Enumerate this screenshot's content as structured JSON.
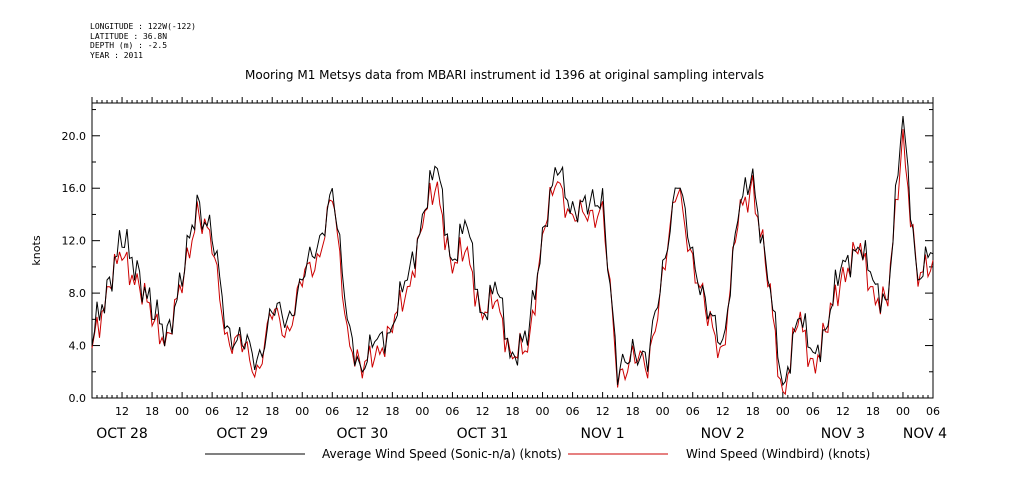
{
  "meta": {
    "longitude": "LONGITUDE : 122W(-122)",
    "latitude": "LATITUDE : 36.8N",
    "depth": "DEPTH (m) : -2.5",
    "year": "YEAR : 2011"
  },
  "chart_data": {
    "type": "line",
    "title": "Mooring M1 Metsys data from MBARI instrument id 1396 at original sampling intervals",
    "ylabel": "knots",
    "xlabel": "",
    "ylim": [
      0,
      22.5
    ],
    "xlim_hours_label": "Oct 28 06:00 to Nov 4 06:00",
    "yticks": [
      "0.0",
      "4.0",
      "8.0",
      "12.0",
      "16.0",
      "20.0"
    ],
    "xticks_hour_labels": [
      "12",
      "18",
      "00",
      "06",
      "12",
      "18",
      "00",
      "06",
      "12",
      "18",
      "00",
      "06",
      "12",
      "18",
      "00",
      "06",
      "12",
      "18",
      "00",
      "06",
      "12",
      "18",
      "00",
      "06",
      "12",
      "18",
      "00",
      "06",
      "12",
      "18",
      "00",
      "06"
    ],
    "day_labels": [
      "OCT 28",
      "OCT 29",
      "OCT 30",
      "OCT 31",
      "NOV  1",
      "NOV  2",
      "NOV  3",
      "NOV  4"
    ],
    "grid": false,
    "legend_position": "bottom",
    "series": [
      {
        "name": "Average Wind Speed (Sonic-n/a) (knots)",
        "color": "#000000",
        "x_hours_from_oct28_0600": [
          0,
          3,
          6,
          9,
          12,
          15,
          18,
          21,
          24,
          27,
          30,
          33,
          36,
          39,
          42,
          45,
          48,
          51,
          54,
          57,
          60,
          63,
          66,
          69,
          72,
          75,
          78,
          81,
          84,
          87,
          90,
          93,
          96,
          99,
          102,
          105,
          108,
          111,
          114,
          117,
          120,
          123,
          126,
          129,
          132,
          135,
          138,
          141,
          144,
          147,
          150,
          153,
          156,
          159,
          162,
          165,
          168
        ],
        "values": [
          4.0,
          9.0,
          11.5,
          10.5,
          6.0,
          5.5,
          8.5,
          15.5,
          12.0,
          5.5,
          4.0,
          3.0,
          6.5,
          6.0,
          9.0,
          11.5,
          16.0,
          6.0,
          2.0,
          4.5,
          5.5,
          9.0,
          14.0,
          17.5,
          10.5,
          13.0,
          6.5,
          8.0,
          3.5,
          4.0,
          13.0,
          17.0,
          15.0,
          14.0,
          16.0,
          1.0,
          4.5,
          2.0,
          10.5,
          16.0,
          11.5,
          6.0,
          4.5,
          13.5,
          17.5,
          9.0,
          1.0,
          6.0,
          3.5,
          5.5,
          10.5,
          11.5,
          9.0,
          7.5,
          21.5,
          9.0,
          11.0
        ]
      },
      {
        "name": "Wind Speed (Windbird) (knots)",
        "color": "#cc0000",
        "x_hours_from_oct28_0600": [
          0,
          3,
          6,
          9,
          12,
          15,
          18,
          21,
          24,
          27,
          30,
          33,
          36,
          39,
          42,
          45,
          48,
          51,
          54,
          57,
          60,
          63,
          66,
          69,
          72,
          75,
          78,
          81,
          84,
          87,
          90,
          93,
          96,
          99,
          102,
          105,
          108,
          111,
          114,
          117,
          120,
          123,
          126,
          129,
          132,
          135,
          138,
          141,
          144,
          147,
          150,
          153,
          156,
          159,
          162,
          165,
          168
        ],
        "values": [
          3.8,
          8.5,
          10.5,
          9.5,
          5.5,
          5.0,
          8.0,
          15.0,
          11.0,
          5.0,
          3.5,
          2.5,
          6.0,
          5.5,
          8.5,
          11.0,
          15.0,
          5.5,
          1.5,
          4.0,
          5.0,
          8.5,
          13.0,
          16.5,
          9.5,
          11.5,
          6.0,
          7.5,
          3.0,
          3.5,
          12.5,
          16.5,
          14.0,
          13.5,
          15.0,
          0.8,
          4.0,
          1.5,
          10.0,
          15.5,
          11.0,
          5.5,
          4.0,
          13.0,
          17.0,
          8.5,
          0.5,
          5.5,
          3.0,
          5.0,
          10.0,
          11.0,
          8.5,
          7.0,
          20.5,
          8.5,
          10.5
        ]
      }
    ]
  }
}
